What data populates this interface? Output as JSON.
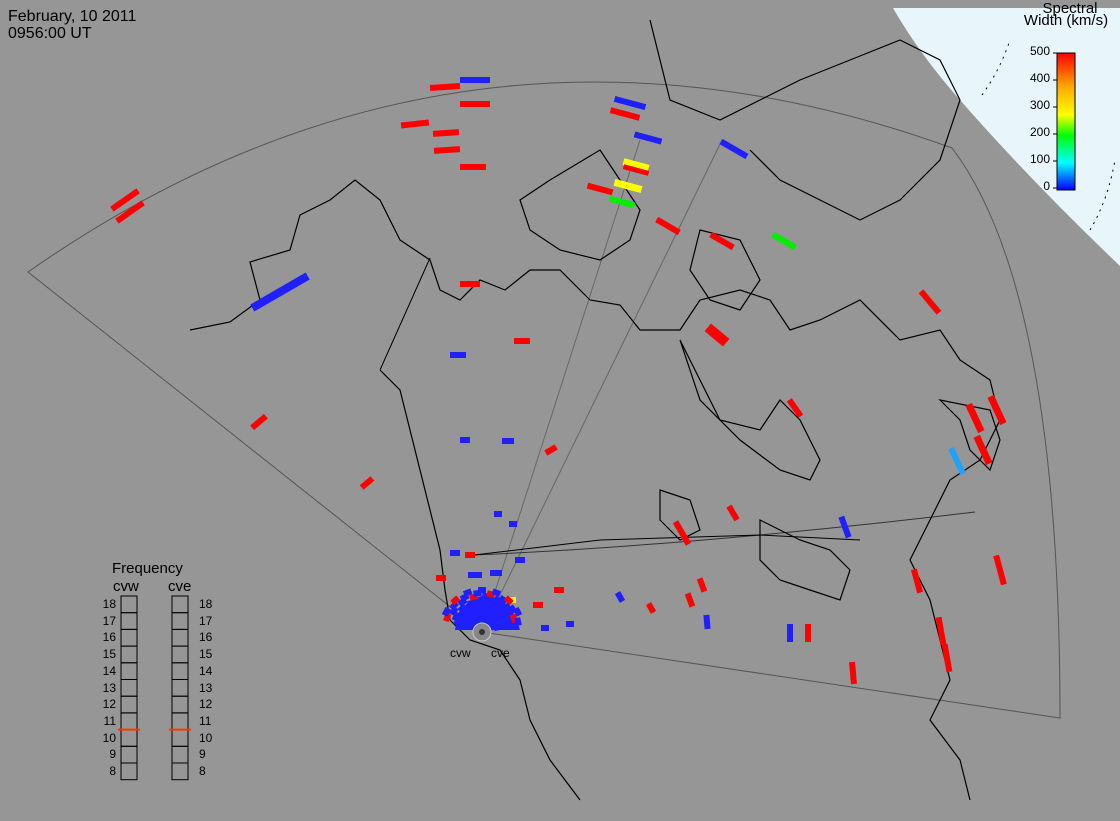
{
  "header": {
    "date": "February, 10 2011",
    "time": "0956:00 UT"
  },
  "legend": {
    "title_line1": "Spectral",
    "title_line2": "Width (km/s)",
    "ticks": [
      "500",
      "400",
      "300",
      "200",
      "100",
      "0"
    ],
    "colormap": [
      "#ff0000",
      "#ffff00",
      "#00ff00",
      "#00ffff",
      "#0000ff"
    ]
  },
  "frequency_panel": {
    "title": "Frequency",
    "radars": [
      "cvw",
      "cve"
    ],
    "scale": [
      "18",
      "17",
      "16",
      "15",
      "14",
      "13",
      "12",
      "11",
      "10",
      "9",
      "8"
    ],
    "current_mhz": 11,
    "marker_color": "#ff3300"
  },
  "radar_sites": [
    {
      "code": "cvw"
    },
    {
      "code": "cve"
    }
  ],
  "colors": {
    "background": "#969696",
    "night_region": "#e8f6fc",
    "coastline": "#000000"
  }
}
